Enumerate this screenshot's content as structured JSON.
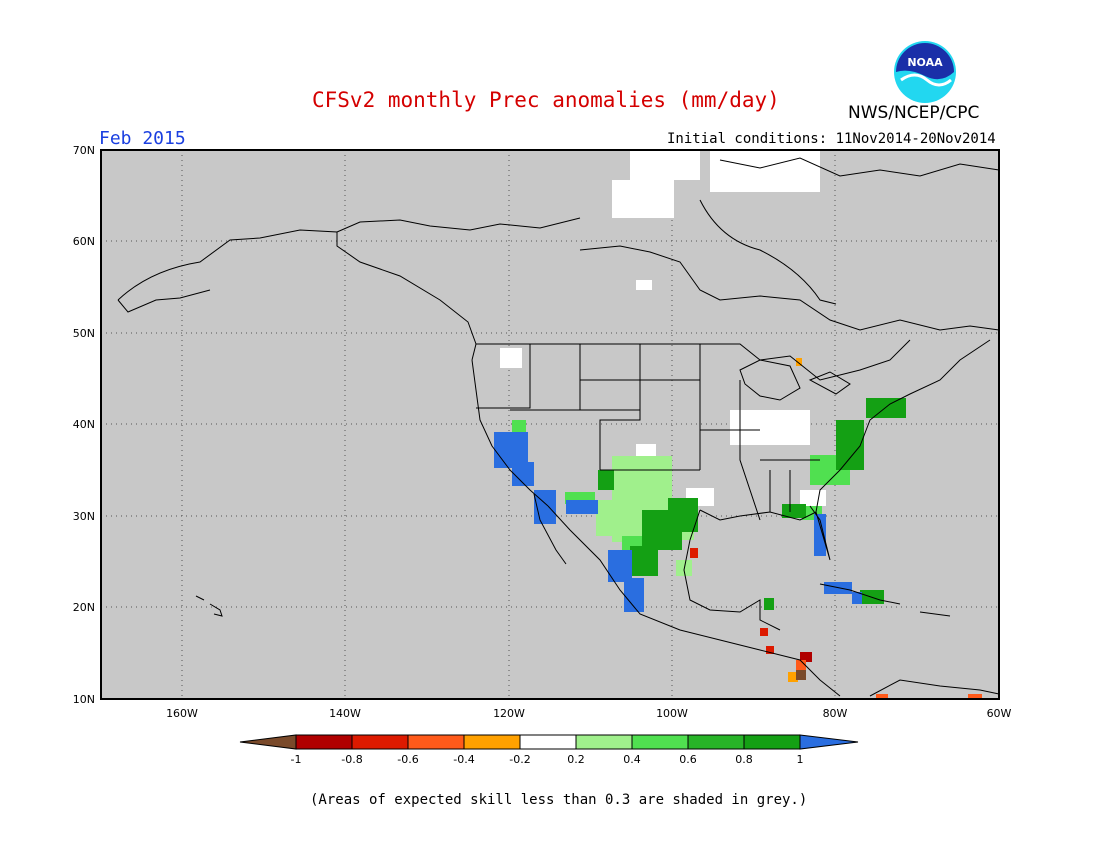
{
  "title": "CFSv2 monthly Prec anomalies (mm/day)",
  "agency": "NWS/NCEP/CPC",
  "logo_text": "NOAA",
  "valid_month": "Feb 2015",
  "initial_conditions": "Initial conditions: 11Nov2014-20Nov2014",
  "footnote": "(Areas of expected skill less than 0.3 are shaded in grey.)",
  "map": {
    "lat_labels": [
      "70N",
      "60N",
      "50N",
      "40N",
      "30N",
      "20N",
      "10N"
    ],
    "lon_labels": [
      "160W",
      "140W",
      "120W",
      "100W",
      "80W",
      "60W"
    ],
    "lat_range": [
      10,
      70
    ],
    "lon_range": [
      -170,
      -60
    ],
    "no_skill_color": "#c8c8c8"
  },
  "colorbar": {
    "labels": [
      "-1",
      "-0.8",
      "-0.6",
      "-0.4",
      "-0.2",
      "0.2",
      "0.4",
      "0.6",
      "0.8",
      "1"
    ],
    "colors": [
      "#7a4a2a",
      "#b00000",
      "#dd1a00",
      "#ff5a1a",
      "#ffa100",
      "#ffffff",
      "#a0f08c",
      "#50e050",
      "#28b428",
      "#14a014",
      "#2a6ee0"
    ]
  },
  "colors": {
    "title": "#d40000",
    "valid_month": "#1a3fe0"
  }
}
